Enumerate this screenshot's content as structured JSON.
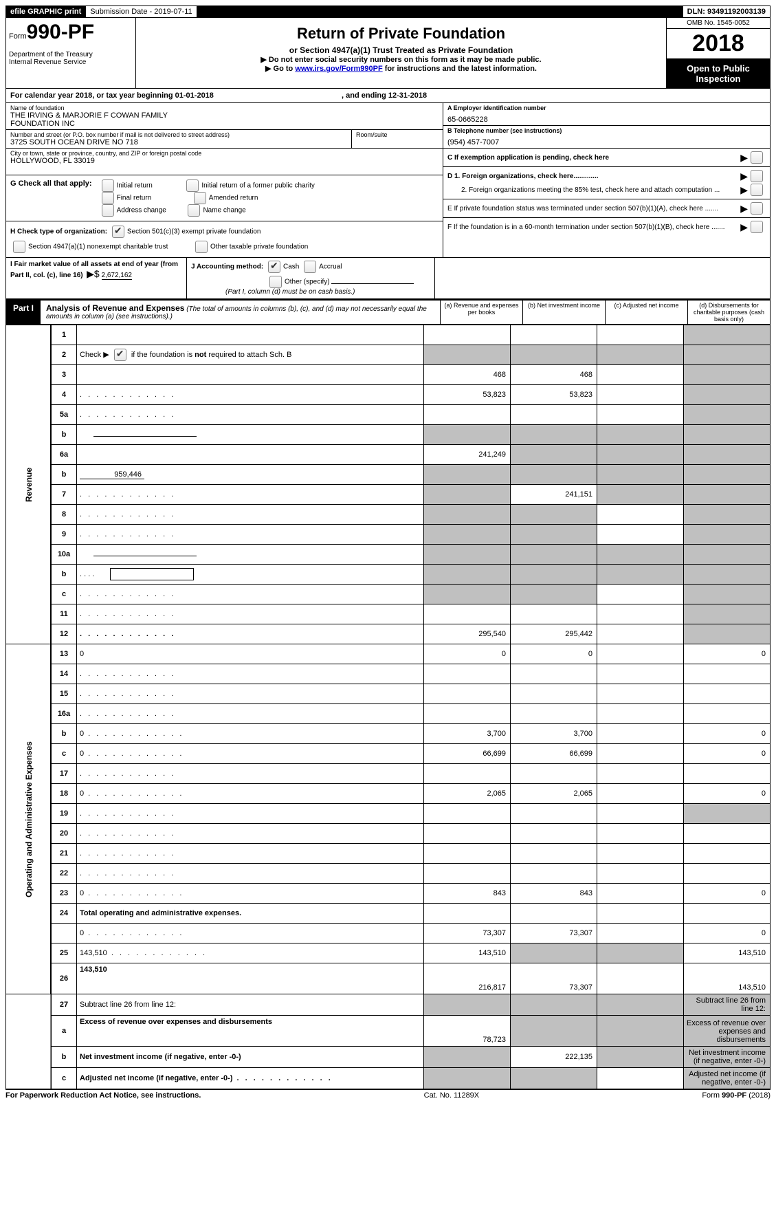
{
  "topbar": {
    "efile": "efile GRAPHIC print",
    "submission_label": "Submission Date - 2019-07-11",
    "dln": "DLN: 93491192003139"
  },
  "header": {
    "form_word": "Form",
    "form_no": "990-PF",
    "dept1": "Department of the Treasury",
    "dept2": "Internal Revenue Service",
    "title": "Return of Private Foundation",
    "subtitle": "or Section 4947(a)(1) Trust Treated as Private Foundation",
    "warn": "▶ Do not enter social security numbers on this form as it may be made public.",
    "goto_pre": "▶ Go to ",
    "goto_link": "www.irs.gov/Form990PF",
    "goto_post": " for instructions and the latest information.",
    "omb": "OMB No. 1545-0052",
    "year": "2018",
    "open": "Open to Public Inspection"
  },
  "cal": {
    "line_a": "For calendar year 2018, or tax year beginning 01-01-2018",
    "line_b": ", and ending 12-31-2018"
  },
  "id": {
    "name_label": "Name of foundation",
    "name1": "THE IRVING & MARJORIE F COWAN FAMILY",
    "name2": "FOUNDATION INC",
    "addr_label": "Number and street (or P.O. box number if mail is not delivered to street address)",
    "addr": "3725 SOUTH OCEAN DRIVE NO 718",
    "room_label": "Room/suite",
    "city_label": "City or town, state or province, country, and ZIP or foreign postal code",
    "city": "HOLLYWOOD, FL  33019",
    "ein_label": "A Employer identification number",
    "ein": "65-0665228",
    "tel_label": "B Telephone number (see instructions)",
    "tel": "(954) 457-7007",
    "c_label": "C  If exemption application is pending, check here",
    "d1": "D 1. Foreign organizations, check here.............",
    "d2": "2. Foreign organizations meeting the 85% test, check here and attach computation ...",
    "e": "E   If private foundation status was terminated under section 507(b)(1)(A), check here .......",
    "f": "F   If the foundation is in a 60-month termination under section 507(b)(1)(B), check here ......."
  },
  "g": {
    "label": "G Check all that apply:",
    "o1": "Initial return",
    "o2": "Initial return of a former public charity",
    "o3": "Final return",
    "o4": "Amended return",
    "o5": "Address change",
    "o6": "Name change"
  },
  "h": {
    "label": "H Check type of organization:",
    "o1": "Section 501(c)(3) exempt private foundation",
    "o2": "Section 4947(a)(1) nonexempt charitable trust",
    "o3": "Other taxable private foundation"
  },
  "i": {
    "label": "I Fair market value of all assets at end of year (from Part II, col. (c), line 16)",
    "arrow": "▶$",
    "val": "2,672,162"
  },
  "j": {
    "label": "J Accounting method:",
    "o1": "Cash",
    "o2": "Accrual",
    "o3": "Other (specify)",
    "note": "(Part I, column (d) must be on cash basis.)"
  },
  "part1": {
    "label": "Part I",
    "title": "Analysis of Revenue and Expenses",
    "note": "(The total of amounts in columns (b), (c), and (d) may not necessarily equal the amounts in column (a) (see instructions).)",
    "col_a": "(a)   Revenue and expenses per books",
    "col_b": "(b)   Net investment income",
    "col_c": "(c)   Adjusted net income",
    "col_d": "(d)   Disbursements for charitable purposes (cash basis only)"
  },
  "side": {
    "rev": "Revenue",
    "exp": "Operating and Administrative Expenses"
  },
  "rows": [
    {
      "n": "1",
      "d": "",
      "a": "",
      "b": "",
      "c": "",
      "gd": true
    },
    {
      "n": "2",
      "d": "",
      "a": "",
      "b": "",
      "c": "",
      "ga": true,
      "gb": true,
      "gc": true,
      "gd": true,
      "span": true
    },
    {
      "n": "3",
      "d": "",
      "a": "468",
      "b": "468",
      "c": "",
      "gd": true
    },
    {
      "n": "4",
      "d": "",
      "a": "53,823",
      "b": "53,823",
      "c": "",
      "dots": true,
      "gd": true
    },
    {
      "n": "5a",
      "d": "",
      "a": "",
      "b": "",
      "c": "",
      "dots": true,
      "gd": true
    },
    {
      "n": "b",
      "d": "",
      "a": "",
      "b": "",
      "c": "",
      "ga": true,
      "gb": true,
      "gc": true,
      "gd": true,
      "half": true
    },
    {
      "n": "6a",
      "d": "",
      "a": "241,249",
      "b": "",
      "c": "",
      "gb": true,
      "gc": true,
      "gd": true
    },
    {
      "n": "b",
      "d": "",
      "a": "",
      "b": "",
      "c": "",
      "ga": true,
      "gb": true,
      "gc": true,
      "gd": true,
      "inline_val": "959,446"
    },
    {
      "n": "7",
      "d": "",
      "a": "",
      "b": "241,151",
      "c": "",
      "dots": true,
      "ga": true,
      "gc": true,
      "gd": true
    },
    {
      "n": "8",
      "d": "",
      "a": "",
      "b": "",
      "c": "",
      "dots": true,
      "ga": true,
      "gb": true,
      "gd": true
    },
    {
      "n": "9",
      "d": "",
      "a": "",
      "b": "",
      "c": "",
      "dots": true,
      "ga": true,
      "gb": true,
      "gd": true
    },
    {
      "n": "10a",
      "d": "",
      "a": "",
      "b": "",
      "c": "",
      "ga": true,
      "gb": true,
      "gc": true,
      "gd": true,
      "half": true
    },
    {
      "n": "b",
      "d": "",
      "a": "",
      "b": "",
      "c": "",
      "dots": true,
      "ga": true,
      "gb": true,
      "gc": true,
      "gd": true,
      "box": true
    },
    {
      "n": "c",
      "d": "",
      "a": "",
      "b": "",
      "c": "",
      "dots": true,
      "ga": true,
      "gb": true,
      "gd": true
    },
    {
      "n": "11",
      "d": "",
      "a": "",
      "b": "",
      "c": "",
      "dots": true,
      "gd": true
    },
    {
      "n": "12",
      "d": "",
      "a": "295,540",
      "b": "295,442",
      "c": "",
      "dots": true,
      "bold": true,
      "gd": true
    }
  ],
  "rows2": [
    {
      "n": "13",
      "d": "0",
      "a": "0",
      "b": "0",
      "c": ""
    },
    {
      "n": "14",
      "d": "",
      "a": "",
      "b": "",
      "c": "",
      "dots": true
    },
    {
      "n": "15",
      "d": "",
      "a": "",
      "b": "",
      "c": "",
      "dots": true
    },
    {
      "n": "16a",
      "d": "",
      "a": "",
      "b": "",
      "c": "",
      "dots": true
    },
    {
      "n": "b",
      "d": "0",
      "a": "3,700",
      "b": "3,700",
      "c": "",
      "dots": true
    },
    {
      "n": "c",
      "d": "0",
      "a": "66,699",
      "b": "66,699",
      "c": "",
      "dots": true
    },
    {
      "n": "17",
      "d": "",
      "a": "",
      "b": "",
      "c": "",
      "dots": true
    },
    {
      "n": "18",
      "d": "0",
      "a": "2,065",
      "b": "2,065",
      "c": "",
      "dots": true
    },
    {
      "n": "19",
      "d": "",
      "a": "",
      "b": "",
      "c": "",
      "dots": true,
      "gd": true
    },
    {
      "n": "20",
      "d": "",
      "a": "",
      "b": "",
      "c": "",
      "dots": true
    },
    {
      "n": "21",
      "d": "",
      "a": "",
      "b": "",
      "c": "",
      "dots": true
    },
    {
      "n": "22",
      "d": "",
      "a": "",
      "b": "",
      "c": "",
      "dots": true
    },
    {
      "n": "23",
      "d": "0",
      "a": "843",
      "b": "843",
      "c": "",
      "dots": true
    },
    {
      "n": "24",
      "d": "Total operating and administrative expenses.",
      "bold": true,
      "noborder": true
    },
    {
      "n": "",
      "d": "0",
      "a": "73,307",
      "b": "73,307",
      "c": "",
      "dots": true
    },
    {
      "n": "25",
      "d": "143,510",
      "a": "143,510",
      "b": "",
      "c": "",
      "dots": true,
      "gb": true,
      "gc": true
    },
    {
      "n": "26",
      "d": "143,510",
      "a": "216,817",
      "b": "73,307",
      "c": "",
      "bold": true,
      "tall": true
    }
  ],
  "rows3": [
    {
      "n": "27",
      "d": "Subtract line 26 from line 12:",
      "ga": true,
      "gb": true,
      "gc": true,
      "gd": true
    },
    {
      "n": "a",
      "d": "Excess of revenue over expenses and disbursements",
      "a": "78,723",
      "bold": true,
      "gb": true,
      "gc": true,
      "gd": true,
      "tall": true
    },
    {
      "n": "b",
      "d": "Net investment income (if negative, enter -0-)",
      "b": "222,135",
      "bold": true,
      "ga": true,
      "gc": true,
      "gd": true
    },
    {
      "n": "c",
      "d": "Adjusted net income (if negative, enter -0-)",
      "bold": true,
      "dots": true,
      "ga": true,
      "gb": true,
      "gd": true
    }
  ],
  "footer": {
    "left": "For Paperwork Reduction Act Notice, see instructions.",
    "mid": "Cat. No. 11289X",
    "right": "Form 990-PF (2018)"
  }
}
